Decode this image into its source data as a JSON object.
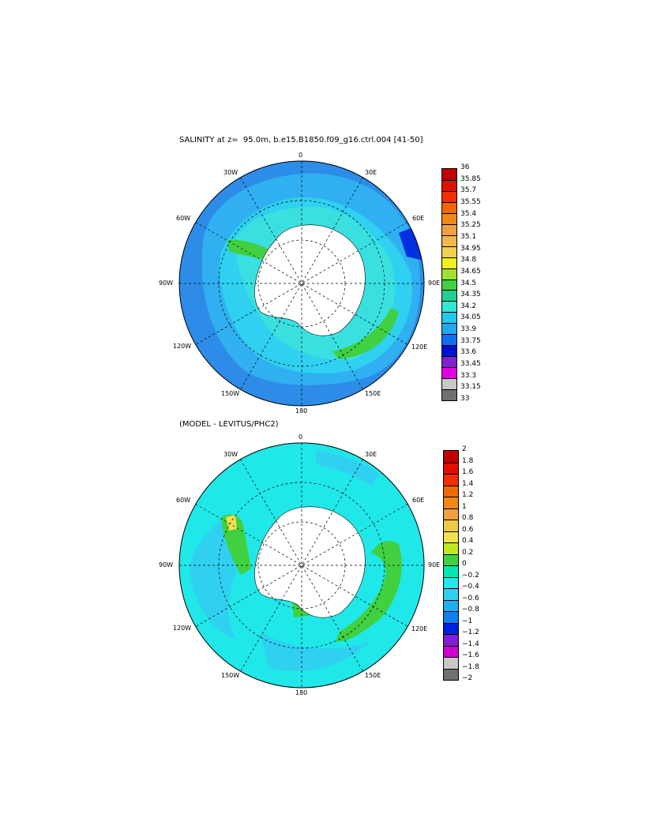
{
  "top_panel": {
    "title": "SALINITY at z=  95.0m, b.e15.B1850.f09_g16.ctrl.004 [41-50]",
    "lon_labels": [
      "0",
      "30E",
      "60E",
      "90E",
      "120E",
      "150E",
      "180",
      "150W",
      "120W",
      "90W",
      "60W",
      "30W"
    ],
    "colorbar": {
      "labels": [
        "36",
        "35.85",
        "35.7",
        "35.55",
        "35.4",
        "35.25",
        "35.1",
        "34.95",
        "34.8",
        "34.65",
        "34.5",
        "34.35",
        "34.2",
        "34.05",
        "33.9",
        "33.75",
        "33.6",
        "33.45",
        "33.3",
        "33.15",
        "33"
      ],
      "colors": [
        "#c00000",
        "#e01000",
        "#f03000",
        "#f06800",
        "#f08818",
        "#f0a040",
        "#f0b848",
        "#f0d050",
        "#f0f020",
        "#a0e030",
        "#40d040",
        "#20d090",
        "#30e8d8",
        "#20c8f0",
        "#20a8f0",
        "#1070f0",
        "#0010d0",
        "#8020d0",
        "#e000e0",
        "#c8c8c8",
        "#707070"
      ]
    }
  },
  "bottom_panel": {
    "title": "(MODEL - LEVITUS/PHC2)",
    "lon_labels": [
      "0",
      "30E",
      "60E",
      "90E",
      "120E",
      "150E",
      "180",
      "150W",
      "120W",
      "90W",
      "60W",
      "30W"
    ],
    "colorbar": {
      "labels": [
        "2",
        "1.8",
        "1.6",
        "1.4",
        "1.2",
        "1",
        "0.8",
        "0.6",
        "0.4",
        "0.2",
        "0",
        "−0.2",
        "−0.4",
        "−0.6",
        "−0.8",
        "−1",
        "−1.2",
        "−1.4",
        "−1.6",
        "−1.8",
        "−2"
      ],
      "colors": [
        "#c00000",
        "#e01000",
        "#f03000",
        "#f06800",
        "#f08818",
        "#f0a040",
        "#f0c848",
        "#f0e050",
        "#c0e820",
        "#40d040",
        "#00e8b0",
        "#20e8e8",
        "#30d0f0",
        "#20b0f0",
        "#1080f0",
        "#0020e0",
        "#8020d0",
        "#d000d0",
        "#c8c8c8",
        "#707070"
      ]
    }
  }
}
